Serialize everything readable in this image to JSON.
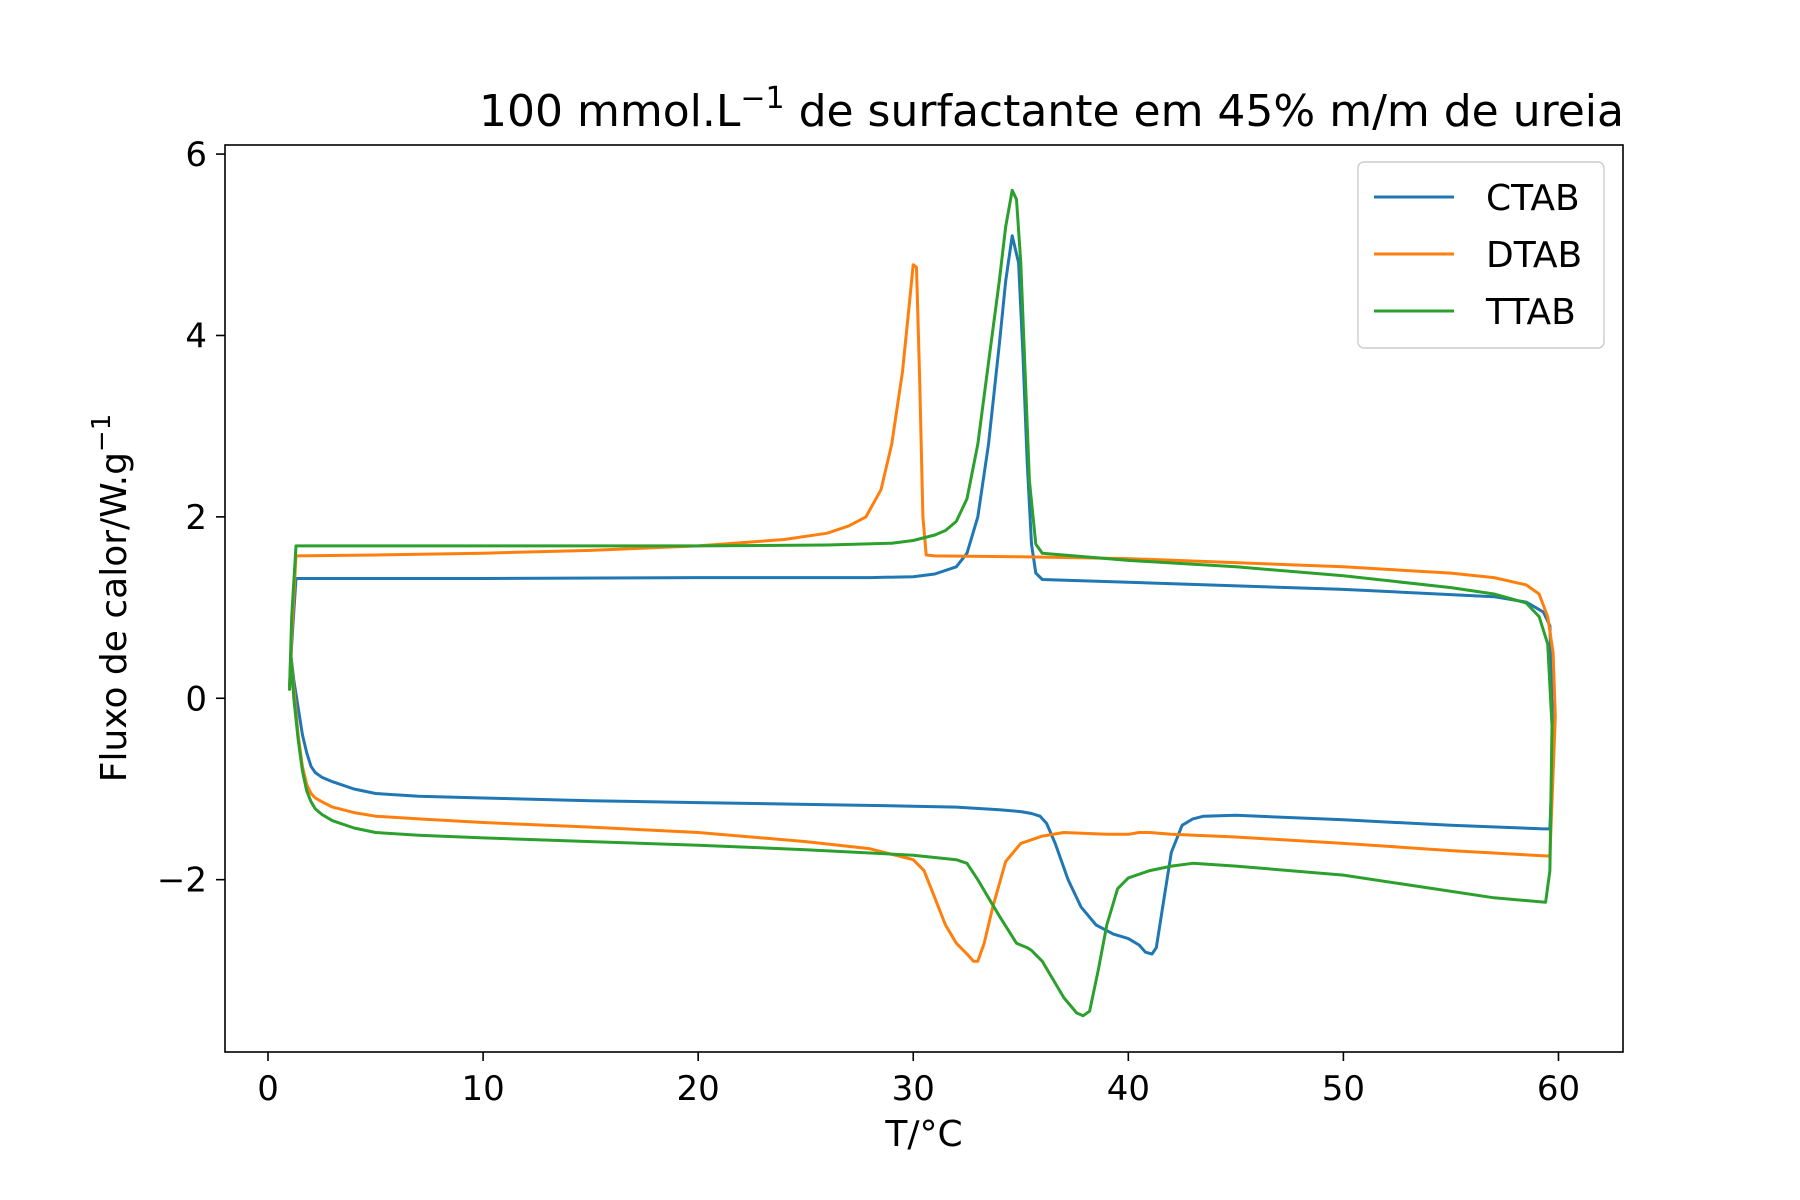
{
  "chart_data": {
    "type": "line",
    "title": "100 mmol.L",
    "title_superscript": "−1",
    "title_suffix": " de surfactante em 45% m/m de ureia",
    "xlabel": "T/°C",
    "ylabel": "Fluxo de calor/W.g",
    "ylabel_superscript": "−1",
    "xlim": [
      -2,
      63
    ],
    "ylim": [
      -3.9,
      6.1
    ],
    "xticks": [
      0,
      10,
      20,
      30,
      40,
      50,
      60
    ],
    "yticks": [
      -2,
      0,
      2,
      4,
      6
    ],
    "ytick_labels": [
      "−2",
      "0",
      "2",
      "4",
      "6"
    ],
    "grid": false,
    "legend_position": "top-right",
    "series": [
      {
        "name": "CTAB",
        "color": "#1f77b4",
        "x": [
          1.0,
          1.1,
          1.3,
          5,
          10,
          20,
          25,
          28,
          30,
          31,
          32,
          32.5,
          33,
          33.5,
          34,
          34.3,
          34.6,
          34.9,
          35.1,
          35.3,
          35.5,
          35.7,
          36.0,
          40,
          50,
          57,
          58.5,
          59.3,
          59.6,
          59.75,
          59.6,
          59.3,
          55,
          50,
          45,
          43.5,
          43,
          42.5,
          42,
          41.6,
          41.3,
          41.1,
          40.8,
          40.5,
          40,
          39.3,
          38.5,
          37.8,
          37.2,
          36.6,
          36.2,
          35.9,
          35.5,
          35,
          34,
          32,
          30,
          25,
          20,
          15,
          10,
          7,
          5,
          4,
          3,
          2.5,
          2.2,
          2.0,
          1.8,
          1.6,
          1.4,
          1.2,
          1.05
        ],
        "y": [
          0.1,
          0.6,
          1.32,
          1.32,
          1.32,
          1.33,
          1.33,
          1.33,
          1.34,
          1.37,
          1.45,
          1.6,
          2.0,
          2.8,
          3.9,
          4.6,
          5.1,
          4.8,
          3.8,
          2.6,
          1.7,
          1.38,
          1.31,
          1.28,
          1.2,
          1.12,
          1.06,
          0.95,
          0.8,
          -0.5,
          -1.44,
          -1.44,
          -1.4,
          -1.34,
          -1.29,
          -1.3,
          -1.33,
          -1.4,
          -1.7,
          -2.3,
          -2.75,
          -2.82,
          -2.8,
          -2.72,
          -2.65,
          -2.6,
          -2.5,
          -2.3,
          -2.0,
          -1.6,
          -1.38,
          -1.3,
          -1.27,
          -1.25,
          -1.23,
          -1.2,
          -1.19,
          -1.17,
          -1.15,
          -1.13,
          -1.1,
          -1.08,
          -1.05,
          -1.0,
          -0.92,
          -0.87,
          -0.82,
          -0.75,
          -0.6,
          -0.4,
          -0.1,
          0.2,
          0.5
        ]
      },
      {
        "name": "DTAB",
        "color": "#ff7f0e",
        "x": [
          1.0,
          1.1,
          1.3,
          5,
          10,
          15,
          20,
          24,
          26,
          27,
          27.8,
          28.5,
          29,
          29.5,
          29.8,
          30.0,
          30.15,
          30.3,
          30.45,
          30.6,
          31,
          35,
          40,
          50,
          55,
          57,
          58.5,
          59.1,
          59.5,
          59.75,
          59.85,
          59.6,
          58,
          55,
          50,
          45,
          42,
          41,
          40.5,
          40,
          39,
          38,
          37,
          36,
          35,
          34.3,
          33.7,
          33.3,
          33.0,
          32.8,
          32.5,
          32,
          31.5,
          31,
          30.5,
          30,
          29,
          28,
          25,
          20,
          15,
          10,
          7,
          5,
          4,
          3,
          2.5,
          2.2,
          2.0,
          1.8,
          1.6,
          1.4,
          1.2,
          1.05
        ],
        "y": [
          0.1,
          0.7,
          1.57,
          1.58,
          1.6,
          1.63,
          1.68,
          1.75,
          1.82,
          1.9,
          2.0,
          2.3,
          2.8,
          3.6,
          4.3,
          4.78,
          4.75,
          3.5,
          2.0,
          1.58,
          1.57,
          1.56,
          1.54,
          1.45,
          1.38,
          1.33,
          1.25,
          1.15,
          0.9,
          0.5,
          -0.2,
          -1.74,
          -1.72,
          -1.68,
          -1.6,
          -1.53,
          -1.5,
          -1.48,
          -1.48,
          -1.5,
          -1.5,
          -1.49,
          -1.48,
          -1.52,
          -1.6,
          -1.8,
          -2.3,
          -2.7,
          -2.9,
          -2.9,
          -2.82,
          -2.7,
          -2.5,
          -2.2,
          -1.9,
          -1.78,
          -1.72,
          -1.66,
          -1.58,
          -1.48,
          -1.42,
          -1.37,
          -1.33,
          -1.3,
          -1.26,
          -1.2,
          -1.14,
          -1.1,
          -1.05,
          -0.95,
          -0.75,
          -0.4,
          0.1,
          0.5
        ],
        "_": 0
      },
      {
        "name": "TTAB",
        "color": "#2ca02c",
        "x": [
          1.0,
          1.1,
          1.3,
          5,
          10,
          20,
          26,
          29,
          30,
          31,
          31.5,
          32,
          32.5,
          33,
          33.5,
          34,
          34.3,
          34.6,
          34.8,
          35.0,
          35.2,
          35.4,
          35.7,
          36.0,
          40,
          45,
          50,
          55,
          57,
          58.5,
          59.1,
          59.5,
          59.7,
          59.6,
          59.4,
          57,
          50,
          45,
          43,
          42,
          41,
          40,
          39.5,
          39,
          38.6,
          38.2,
          37.9,
          37.6,
          37,
          36.5,
          36,
          35.5,
          35.3,
          34.8,
          34.4,
          34,
          33.5,
          33,
          32.5,
          32,
          30,
          25,
          20,
          15,
          10,
          7,
          5,
          4,
          3,
          2.5,
          2.2,
          2.0,
          1.8,
          1.6,
          1.4,
          1.2,
          1.05
        ],
        "y": [
          0.1,
          0.9,
          1.68,
          1.68,
          1.68,
          1.68,
          1.69,
          1.71,
          1.74,
          1.8,
          1.85,
          1.95,
          2.2,
          2.8,
          3.7,
          4.6,
          5.2,
          5.6,
          5.5,
          4.8,
          3.6,
          2.4,
          1.7,
          1.6,
          1.52,
          1.45,
          1.35,
          1.22,
          1.15,
          1.05,
          0.9,
          0.6,
          -0.3,
          -1.9,
          -2.25,
          -2.2,
          -1.95,
          -1.85,
          -1.82,
          -1.85,
          -1.9,
          -1.98,
          -2.1,
          -2.5,
          -3.0,
          -3.45,
          -3.5,
          -3.47,
          -3.3,
          -3.1,
          -2.9,
          -2.78,
          -2.75,
          -2.7,
          -2.55,
          -2.4,
          -2.2,
          -2.0,
          -1.82,
          -1.78,
          -1.73,
          -1.67,
          -1.62,
          -1.58,
          -1.54,
          -1.51,
          -1.48,
          -1.43,
          -1.35,
          -1.28,
          -1.22,
          -1.14,
          -1.02,
          -0.8,
          -0.45,
          0.0,
          0.5
        ]
      }
    ]
  }
}
